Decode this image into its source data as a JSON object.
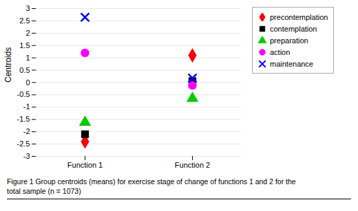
{
  "chart_data": {
    "type": "scatter",
    "y_label": "Centroids",
    "categories": [
      "Function 1",
      "Function 2"
    ],
    "series": [
      {
        "name": "precontemplation",
        "color": "#ff0000",
        "marker": "diamond",
        "values": [
          -2.4,
          1.1
        ]
      },
      {
        "name": "contemplation",
        "color": "#000000",
        "marker": "square",
        "values": [
          -2.1,
          0.05
        ]
      },
      {
        "name": "preparation",
        "color": "#00cc00",
        "marker": "triangle",
        "values": [
          -1.62,
          -0.65
        ]
      },
      {
        "name": "action",
        "color": "#ff00ff",
        "marker": "circle",
        "values": [
          1.2,
          -0.12
        ]
      },
      {
        "name": "maintenance",
        "color": "#0000ff",
        "marker": "times",
        "values": [
          2.65,
          0.18
        ]
      }
    ],
    "ylim": [
      -3,
      3
    ],
    "yticks": [
      -3,
      -2.5,
      -2,
      -1.5,
      -1,
      -0.5,
      0,
      0.5,
      1,
      1.5,
      2,
      2.5,
      3
    ],
    "grid": true,
    "legend": "right",
    "caption": [
      "Figure 1 Group centroids (means) for exercise stage of change of functions 1 and 2 for the",
      "total sample (n = 1073)"
    ]
  }
}
